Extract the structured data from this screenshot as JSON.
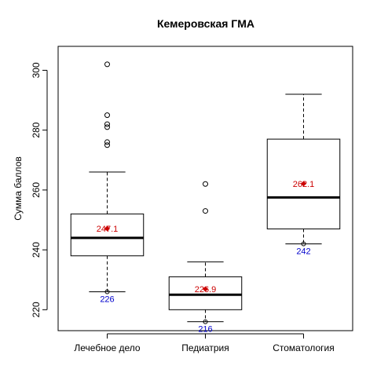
{
  "chart_data": {
    "type": "box",
    "title": "Кемеровская ГМА",
    "xlabel": "",
    "ylabel": "Сумма баллов",
    "ylim": [
      213,
      308
    ],
    "yticks": [
      220,
      240,
      260,
      280,
      300
    ],
    "grid": false,
    "colors": {
      "mean": "#cc0000",
      "min": "#0000cc",
      "box": "#000000"
    },
    "categories": [
      "Лечебное дело",
      "Педиатрия",
      "Стоматология"
    ],
    "boxes": [
      {
        "category": "Лечебное дело",
        "whisker_low": 226,
        "q1": 238,
        "median": 244,
        "q3": 252,
        "whisker_high": 266,
        "outliers": [
          275,
          276,
          281,
          282,
          285,
          302
        ],
        "mean": 247.1,
        "mean_label": "247.1",
        "min": 226,
        "min_label": "226"
      },
      {
        "category": "Педиатрия",
        "whisker_low": 216,
        "q1": 220,
        "median": 225,
        "q3": 231,
        "whisker_high": 236,
        "outliers": [
          253,
          262
        ],
        "mean": 226.9,
        "mean_label": "226.9",
        "min": 216,
        "min_label": "216"
      },
      {
        "category": "Стоматология",
        "whisker_low": 242,
        "q1": 247,
        "median": 257.5,
        "q3": 277,
        "whisker_high": 292,
        "outliers": [],
        "mean": 262.1,
        "mean_label": "262.1",
        "min": 242,
        "min_label": "242"
      }
    ]
  }
}
